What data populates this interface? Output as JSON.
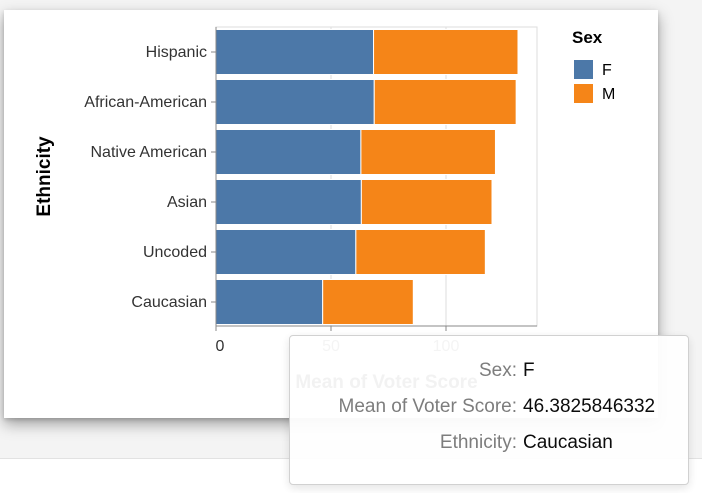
{
  "chart_data": {
    "type": "bar",
    "orientation": "horizontal",
    "stacked": true,
    "categories": [
      "Hispanic",
      "African-American",
      "Native American",
      "Asian",
      "Uncoded",
      "Caucasian"
    ],
    "series": [
      {
        "name": "F",
        "values": [
          68.5,
          68.8,
          63.0,
          63.2,
          60.8,
          46.38
        ]
      },
      {
        "name": "M",
        "values": [
          62.8,
          61.7,
          58.5,
          56.8,
          56.3,
          39.4
        ]
      }
    ],
    "xlabel": "Mean of Voter Score",
    "ylabel": "Ethnicity",
    "xlim": [
      0,
      140
    ],
    "xticks": [
      0,
      50,
      100
    ],
    "grid": true,
    "legend": {
      "title": "Sex",
      "position": "top-right"
    },
    "colors": {
      "F": "#4c78a8",
      "M": "#f58518"
    }
  },
  "tooltip": {
    "rows": [
      {
        "key": "Sex:",
        "value": "F"
      },
      {
        "key": "Mean of Voter Score:",
        "value": "46.3825846332"
      },
      {
        "key": "Ethnicity:",
        "value": "Caucasian"
      }
    ]
  }
}
